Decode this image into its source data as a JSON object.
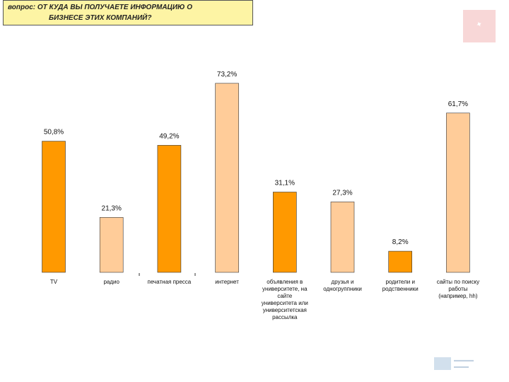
{
  "question": {
    "line1": "вопрос: ОТ КУДА ВЫ ПОЛУЧАЕТЕ ИНФОРМАЦИЮ О",
    "line2": "БИЗНЕСЕ ЭТИХ КОМПАНИЙ?"
  },
  "colors": {
    "dark_bar": "#ff9900",
    "light_bar": "#ffcc99",
    "bar_stroke": "#333333"
  },
  "chart_data": {
    "type": "bar",
    "title": "вопрос: ОТ КУДА ВЫ ПОЛУЧАЕТЕ ИНФОРМАЦИЮ О БИЗНЕСЕ ЭТИХ КОМПАНИЙ?",
    "xlabel": "",
    "ylabel": "",
    "ylim": [
      0,
      80
    ],
    "unit": "%",
    "categories": [
      [
        "TV"
      ],
      [
        "радио"
      ],
      [
        "печатная пресса"
      ],
      [
        "интернет"
      ],
      [
        "объявления в",
        "университете, на",
        "сайте",
        "университета или",
        "университетская",
        "рассылка"
      ],
      [
        "друзья и",
        "одногруппники"
      ],
      [
        "родители и",
        "родственники"
      ],
      [
        "сайты по поиску",
        "работы",
        "(например, hh)"
      ]
    ],
    "values": [
      50.8,
      21.3,
      49.2,
      73.2,
      31.1,
      27.3,
      8.2,
      61.7
    ],
    "value_labels": [
      "50,8%",
      "21,3%",
      "49,2%",
      "73,2%",
      "31,1%",
      "27,3%",
      "8,2%",
      "61,7%"
    ],
    "bar_tone": [
      "dark",
      "light",
      "dark",
      "light",
      "dark",
      "light",
      "dark",
      "light"
    ]
  }
}
